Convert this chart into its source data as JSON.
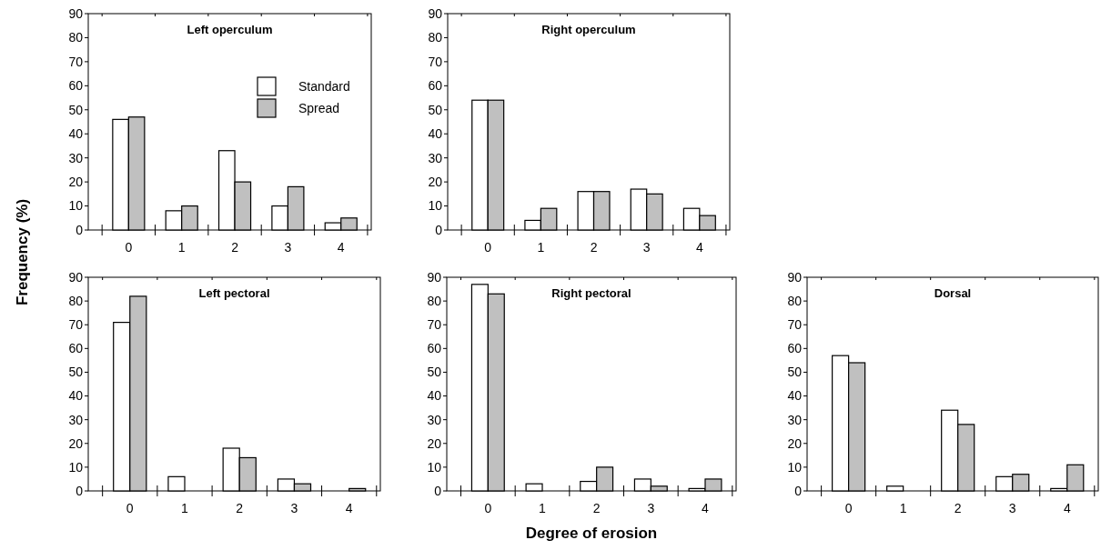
{
  "chart_data": [
    {
      "type": "bar",
      "title": "Left operculum",
      "ylabel": "Frequency (%)",
      "categories": [
        "0",
        "1",
        "2",
        "3",
        "4"
      ],
      "series": [
        {
          "name": "Standard",
          "color": "#ffffff",
          "values": [
            46,
            8,
            33,
            10,
            3
          ]
        },
        {
          "name": "Spread",
          "color": "#c0c0c0",
          "values": [
            47,
            10,
            20,
            18,
            5
          ]
        }
      ],
      "ylim": [
        0,
        90
      ],
      "yticks": [
        0,
        10,
        20,
        30,
        40,
        50,
        60,
        70,
        80,
        90
      ],
      "legend": "top right"
    },
    {
      "type": "bar",
      "title": "Right operculum",
      "categories": [
        "0",
        "1",
        "2",
        "3",
        "4"
      ],
      "series": [
        {
          "color": "#ffffff",
          "values": [
            54,
            4,
            16,
            17,
            9
          ]
        },
        {
          "color": "#c0c0c0",
          "values": [
            54,
            9,
            16,
            15,
            6
          ]
        }
      ],
      "ylim": [
        0,
        90
      ],
      "yticks": [
        0,
        10,
        20,
        30,
        40,
        50,
        60,
        70,
        80,
        90
      ]
    },
    {
      "type": "bar",
      "title": "Left pectoral",
      "categories": [
        "0",
        "1",
        "2",
        "3",
        "4"
      ],
      "series": [
        {
          "color": "#ffffff",
          "values": [
            71,
            6,
            18,
            5,
            0
          ]
        },
        {
          "color": "#c0c0c0",
          "values": [
            82,
            0,
            14,
            3,
            1
          ]
        }
      ],
      "ylim": [
        0,
        90
      ],
      "yticks": [
        0,
        10,
        20,
        30,
        40,
        50,
        60,
        70,
        80,
        90
      ]
    },
    {
      "type": "bar",
      "title": "Right pectoral",
      "xlabel": "Degree of erosion",
      "categories": [
        "0",
        "1",
        "2",
        "3",
        "4"
      ],
      "series": [
        {
          "color": "#ffffff",
          "values": [
            87,
            3,
            4,
            5,
            1
          ]
        },
        {
          "color": "#c0c0c0",
          "values": [
            83,
            0,
            10,
            2,
            5
          ]
        }
      ],
      "ylim": [
        0,
        90
      ],
      "yticks": [
        0,
        10,
        20,
        30,
        40,
        50,
        60,
        70,
        80,
        90
      ]
    },
    {
      "type": "bar",
      "title": "Dorsal",
      "categories": [
        "0",
        "1",
        "2",
        "3",
        "4"
      ],
      "series": [
        {
          "color": "#ffffff",
          "values": [
            57,
            2,
            34,
            6,
            1
          ]
        },
        {
          "color": "#c0c0c0",
          "values": [
            54,
            0,
            28,
            7,
            11
          ]
        }
      ],
      "ylim": [
        0,
        90
      ],
      "yticks": [
        0,
        10,
        20,
        30,
        40,
        50,
        60,
        70,
        80,
        90
      ]
    }
  ]
}
